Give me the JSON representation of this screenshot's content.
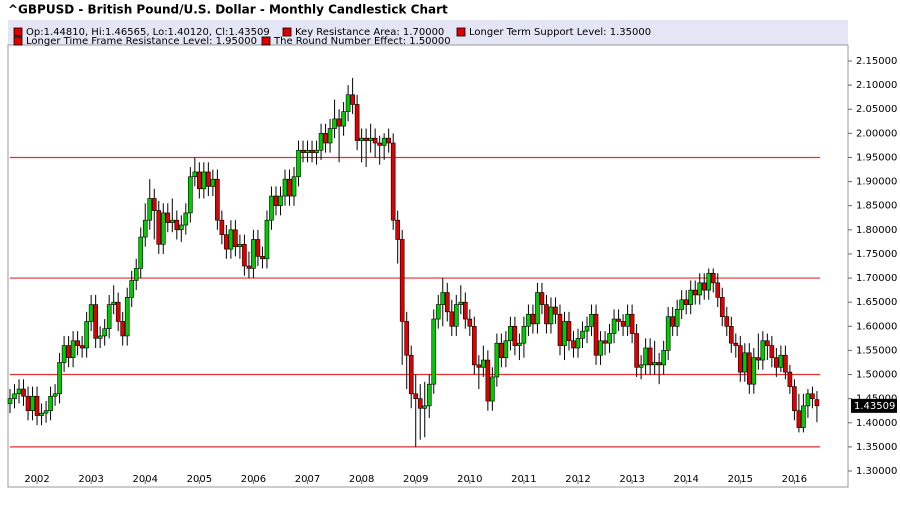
{
  "chart_data": {
    "type": "candlestick",
    "title": "^GBPUSD - British Pound/U.S. Dollar - Monthly Candlestick Chart",
    "ohlc_label": "Op:1.44810, Hi:1.46565, Lo:1.40120, Cl:1.43509",
    "last_price_label": "1.43509",
    "up_color": "#00cc00",
    "down_color": "#e00000",
    "level_color": "#e03030",
    "levels": [
      {
        "label": "Key Resistance Area: 1.70000",
        "value": 1.7
      },
      {
        "label": "Longer Term Support Level: 1.35000",
        "value": 1.35
      },
      {
        "label": "Longer Time Frame Resistance Level: 1.95000",
        "value": 1.95
      },
      {
        "label": "The Round Number Effect: 1.50000",
        "value": 1.5
      }
    ],
    "ylim": [
      1.3,
      2.15
    ],
    "yticks": [
      {
        "value": 1.3,
        "label": "1.30000"
      },
      {
        "value": 1.35,
        "label": "1.35000"
      },
      {
        "value": 1.4,
        "label": "1.40000"
      },
      {
        "value": 1.45,
        "label": "1.45000"
      },
      {
        "value": 1.5,
        "label": "1.50000"
      },
      {
        "value": 1.55,
        "label": "1.55000"
      },
      {
        "value": 1.6,
        "label": "1.60000"
      },
      {
        "value": 1.65,
        "label": "1.65000"
      },
      {
        "value": 1.7,
        "label": "1.70000"
      },
      {
        "value": 1.75,
        "label": "1.75000"
      },
      {
        "value": 1.8,
        "label": "1.80000"
      },
      {
        "value": 1.85,
        "label": "1.85000"
      },
      {
        "value": 1.9,
        "label": "1.90000"
      },
      {
        "value": 1.95,
        "label": "1.95000"
      },
      {
        "value": 2.0,
        "label": "2.00000"
      },
      {
        "value": 2.05,
        "label": "2.05000"
      },
      {
        "value": 2.1,
        "label": "2.10000"
      },
      {
        "value": 2.15,
        "label": "2.15000"
      }
    ],
    "categories": [
      null,
      null,
      null,
      null,
      null,
      null,
      "2002",
      null,
      null,
      null,
      null,
      null,
      null,
      null,
      null,
      null,
      null,
      null,
      "2003",
      null,
      null,
      null,
      null,
      null,
      null,
      null,
      null,
      null,
      null,
      null,
      "2004",
      null,
      null,
      null,
      null,
      null,
      null,
      null,
      null,
      null,
      null,
      null,
      "2005",
      null,
      null,
      null,
      null,
      null,
      null,
      null,
      null,
      null,
      null,
      null,
      "2006",
      null,
      null,
      null,
      null,
      null,
      null,
      null,
      null,
      null,
      null,
      null,
      "2007",
      null,
      null,
      null,
      null,
      null,
      null,
      null,
      null,
      null,
      null,
      null,
      "2008",
      null,
      null,
      null,
      null,
      null,
      null,
      null,
      null,
      null,
      null,
      null,
      "2009",
      null,
      null,
      null,
      null,
      null,
      null,
      null,
      null,
      null,
      null,
      null,
      "2010",
      null,
      null,
      null,
      null,
      null,
      null,
      null,
      null,
      null,
      null,
      null,
      "2011",
      null,
      null,
      null,
      null,
      null,
      null,
      null,
      null,
      null,
      null,
      null,
      "2012",
      null,
      null,
      null,
      null,
      null,
      null,
      null,
      null,
      null,
      null,
      null,
      "2013",
      null,
      null,
      null,
      null,
      null,
      null,
      null,
      null,
      null,
      null,
      null,
      "2014",
      null,
      null,
      null,
      null,
      null,
      null,
      null,
      null,
      null,
      null,
      null,
      "2015",
      null,
      null,
      null,
      null,
      null,
      null,
      null,
      null,
      null,
      null,
      null,
      "2016",
      null,
      null,
      null,
      null,
      null
    ],
    "candles": [
      [
        1.44,
        1.47,
        1.42,
        1.45
      ],
      [
        1.45,
        1.48,
        1.43,
        1.46
      ],
      [
        1.46,
        1.49,
        1.44,
        1.47
      ],
      [
        1.47,
        1.49,
        1.435,
        1.455
      ],
      [
        1.455,
        1.475,
        1.405,
        1.425
      ],
      [
        1.425,
        1.475,
        1.405,
        1.455
      ],
      [
        1.455,
        1.475,
        1.395,
        1.415
      ],
      [
        1.415,
        1.44,
        1.395,
        1.42
      ],
      [
        1.42,
        1.445,
        1.4,
        1.425
      ],
      [
        1.425,
        1.475,
        1.405,
        1.455
      ],
      [
        1.455,
        1.48,
        1.435,
        1.46
      ],
      [
        1.46,
        1.545,
        1.44,
        1.525
      ],
      [
        1.525,
        1.58,
        1.505,
        1.56
      ],
      [
        1.56,
        1.58,
        1.515,
        1.535
      ],
      [
        1.535,
        1.59,
        1.515,
        1.57
      ],
      [
        1.57,
        1.59,
        1.54,
        1.56
      ],
      [
        1.56,
        1.58,
        1.535,
        1.555
      ],
      [
        1.555,
        1.63,
        1.535,
        1.61
      ],
      [
        1.61,
        1.665,
        1.59,
        1.645
      ],
      [
        1.645,
        1.665,
        1.555,
        1.575
      ],
      [
        1.575,
        1.6,
        1.555,
        1.58
      ],
      [
        1.58,
        1.615,
        1.56,
        1.595
      ],
      [
        1.595,
        1.665,
        1.575,
        1.645
      ],
      [
        1.645,
        1.685,
        1.625,
        1.65
      ],
      [
        1.65,
        1.67,
        1.59,
        1.61
      ],
      [
        1.61,
        1.63,
        1.56,
        1.58
      ],
      [
        1.58,
        1.68,
        1.56,
        1.66
      ],
      [
        1.66,
        1.715,
        1.64,
        1.695
      ],
      [
        1.695,
        1.74,
        1.675,
        1.72
      ],
      [
        1.72,
        1.805,
        1.7,
        1.785
      ],
      [
        1.785,
        1.855,
        1.765,
        1.82
      ],
      [
        1.82,
        1.905,
        1.8,
        1.865
      ],
      [
        1.865,
        1.885,
        1.78,
        1.84
      ],
      [
        1.84,
        1.86,
        1.75,
        1.77
      ],
      [
        1.77,
        1.855,
        1.75,
        1.835
      ],
      [
        1.835,
        1.855,
        1.795,
        1.815
      ],
      [
        1.815,
        1.865,
        1.795,
        1.82
      ],
      [
        1.82,
        1.84,
        1.78,
        1.8
      ],
      [
        1.8,
        1.83,
        1.775,
        1.81
      ],
      [
        1.81,
        1.855,
        1.79,
        1.835
      ],
      [
        1.835,
        1.93,
        1.815,
        1.91
      ],
      [
        1.91,
        1.95,
        1.89,
        1.92
      ],
      [
        1.92,
        1.94,
        1.865,
        1.885
      ],
      [
        1.885,
        1.94,
        1.865,
        1.92
      ],
      [
        1.92,
        1.94,
        1.87,
        1.89
      ],
      [
        1.89,
        1.925,
        1.87,
        1.905
      ],
      [
        1.905,
        1.925,
        1.8,
        1.82
      ],
      [
        1.82,
        1.84,
        1.77,
        1.79
      ],
      [
        1.79,
        1.81,
        1.74,
        1.76
      ],
      [
        1.76,
        1.82,
        1.74,
        1.8
      ],
      [
        1.8,
        1.82,
        1.745,
        1.765
      ],
      [
        1.765,
        1.79,
        1.74,
        1.77
      ],
      [
        1.77,
        1.79,
        1.705,
        1.725
      ],
      [
        1.725,
        1.755,
        1.7,
        1.72
      ],
      [
        1.72,
        1.8,
        1.7,
        1.78
      ],
      [
        1.78,
        1.8,
        1.725,
        1.745
      ],
      [
        1.745,
        1.765,
        1.72,
        1.74
      ],
      [
        1.74,
        1.84,
        1.72,
        1.82
      ],
      [
        1.82,
        1.89,
        1.8,
        1.87
      ],
      [
        1.87,
        1.89,
        1.83,
        1.85
      ],
      [
        1.85,
        1.89,
        1.83,
        1.87
      ],
      [
        1.87,
        1.925,
        1.85,
        1.905
      ],
      [
        1.905,
        1.925,
        1.85,
        1.87
      ],
      [
        1.87,
        1.93,
        1.85,
        1.91
      ],
      [
        1.91,
        1.985,
        1.89,
        1.965
      ],
      [
        1.965,
        1.985,
        1.94,
        1.96
      ],
      [
        1.96,
        1.985,
        1.94,
        1.965
      ],
      [
        1.965,
        1.985,
        1.94,
        1.96
      ],
      [
        1.96,
        1.985,
        1.935,
        1.965
      ],
      [
        1.965,
        2.02,
        1.945,
        2.0
      ],
      [
        2.0,
        2.02,
        1.96,
        1.98
      ],
      [
        1.98,
        2.03,
        1.96,
        2.01
      ],
      [
        2.01,
        2.07,
        1.99,
        2.03
      ],
      [
        2.03,
        2.05,
        1.94,
        2.015
      ],
      [
        2.015,
        2.065,
        1.995,
        2.045
      ],
      [
        2.045,
        2.1,
        2.025,
        2.08
      ],
      [
        2.08,
        2.115,
        2.04,
        2.06
      ],
      [
        2.06,
        2.08,
        1.965,
        1.985
      ],
      [
        1.985,
        2.01,
        1.94,
        1.99
      ],
      [
        1.99,
        2.01,
        1.93,
        1.985
      ],
      [
        1.985,
        2.02,
        1.96,
        1.99
      ],
      [
        1.99,
        2.01,
        1.95,
        1.98
      ],
      [
        1.98,
        1.995,
        1.935,
        1.975
      ],
      [
        1.975,
        2.0,
        1.945,
        1.99
      ],
      [
        1.99,
        2.01,
        1.96,
        1.98
      ],
      [
        1.98,
        2.0,
        1.8,
        1.82
      ],
      [
        1.82,
        1.84,
        1.73,
        1.78
      ],
      [
        1.78,
        1.8,
        1.52,
        1.61
      ],
      [
        1.61,
        1.63,
        1.47,
        1.54
      ],
      [
        1.54,
        1.56,
        1.43,
        1.46
      ],
      [
        1.46,
        1.5,
        1.35,
        1.45
      ],
      [
        1.45,
        1.48,
        1.365,
        1.43
      ],
      [
        1.43,
        1.485,
        1.37,
        1.435
      ],
      [
        1.435,
        1.5,
        1.41,
        1.48
      ],
      [
        1.48,
        1.635,
        1.46,
        1.615
      ],
      [
        1.615,
        1.665,
        1.595,
        1.645
      ],
      [
        1.645,
        1.7,
        1.6,
        1.67
      ],
      [
        1.67,
        1.69,
        1.61,
        1.63
      ],
      [
        1.63,
        1.655,
        1.58,
        1.6
      ],
      [
        1.6,
        1.665,
        1.58,
        1.645
      ],
      [
        1.645,
        1.685,
        1.625,
        1.65
      ],
      [
        1.65,
        1.67,
        1.595,
        1.615
      ],
      [
        1.615,
        1.635,
        1.58,
        1.6
      ],
      [
        1.6,
        1.62,
        1.5,
        1.52
      ],
      [
        1.52,
        1.54,
        1.47,
        1.515
      ],
      [
        1.515,
        1.56,
        1.495,
        1.53
      ],
      [
        1.53,
        1.55,
        1.425,
        1.445
      ],
      [
        1.445,
        1.515,
        1.425,
        1.495
      ],
      [
        1.495,
        1.585,
        1.475,
        1.565
      ],
      [
        1.565,
        1.585,
        1.515,
        1.535
      ],
      [
        1.535,
        1.59,
        1.515,
        1.57
      ],
      [
        1.57,
        1.62,
        1.55,
        1.6
      ],
      [
        1.6,
        1.62,
        1.54,
        1.56
      ],
      [
        1.56,
        1.585,
        1.53,
        1.565
      ],
      [
        1.565,
        1.62,
        1.535,
        1.6
      ],
      [
        1.6,
        1.645,
        1.58,
        1.625
      ],
      [
        1.625,
        1.645,
        1.585,
        1.605
      ],
      [
        1.605,
        1.69,
        1.585,
        1.67
      ],
      [
        1.67,
        1.69,
        1.625,
        1.645
      ],
      [
        1.645,
        1.665,
        1.585,
        1.605
      ],
      [
        1.605,
        1.66,
        1.585,
        1.64
      ],
      [
        1.64,
        1.66,
        1.605,
        1.625
      ],
      [
        1.625,
        1.645,
        1.54,
        1.56
      ],
      [
        1.56,
        1.63,
        1.53,
        1.61
      ],
      [
        1.61,
        1.63,
        1.55,
        1.57
      ],
      [
        1.57,
        1.59,
        1.535,
        1.555
      ],
      [
        1.555,
        1.595,
        1.535,
        1.575
      ],
      [
        1.575,
        1.61,
        1.555,
        1.59
      ],
      [
        1.59,
        1.62,
        1.565,
        1.6
      ],
      [
        1.6,
        1.645,
        1.58,
        1.625
      ],
      [
        1.625,
        1.645,
        1.52,
        1.54
      ],
      [
        1.54,
        1.59,
        1.52,
        1.57
      ],
      [
        1.57,
        1.59,
        1.54,
        1.565
      ],
      [
        1.565,
        1.605,
        1.545,
        1.585
      ],
      [
        1.585,
        1.635,
        1.565,
        1.615
      ],
      [
        1.615,
        1.635,
        1.59,
        1.61
      ],
      [
        1.61,
        1.625,
        1.58,
        1.6
      ],
      [
        1.6,
        1.645,
        1.58,
        1.625
      ],
      [
        1.625,
        1.645,
        1.565,
        1.585
      ],
      [
        1.585,
        1.605,
        1.495,
        1.515
      ],
      [
        1.515,
        1.54,
        1.49,
        1.52
      ],
      [
        1.52,
        1.575,
        1.5,
        1.555
      ],
      [
        1.555,
        1.575,
        1.5,
        1.52
      ],
      [
        1.52,
        1.57,
        1.5,
        1.525
      ],
      [
        1.525,
        1.545,
        1.48,
        1.52
      ],
      [
        1.52,
        1.57,
        1.5,
        1.55
      ],
      [
        1.55,
        1.64,
        1.53,
        1.62
      ],
      [
        1.62,
        1.64,
        1.58,
        1.6
      ],
      [
        1.6,
        1.655,
        1.58,
        1.635
      ],
      [
        1.635,
        1.675,
        1.615,
        1.655
      ],
      [
        1.655,
        1.675,
        1.625,
        1.645
      ],
      [
        1.645,
        1.695,
        1.625,
        1.675
      ],
      [
        1.675,
        1.695,
        1.645,
        1.665
      ],
      [
        1.665,
        1.71,
        1.645,
        1.69
      ],
      [
        1.69,
        1.71,
        1.655,
        1.675
      ],
      [
        1.675,
        1.72,
        1.655,
        1.71
      ],
      [
        1.71,
        1.72,
        1.67,
        1.69
      ],
      [
        1.69,
        1.71,
        1.64,
        1.66
      ],
      [
        1.66,
        1.68,
        1.6,
        1.62
      ],
      [
        1.62,
        1.64,
        1.58,
        1.6
      ],
      [
        1.6,
        1.62,
        1.545,
        1.565
      ],
      [
        1.565,
        1.585,
        1.535,
        1.56
      ],
      [
        1.56,
        1.58,
        1.485,
        1.505
      ],
      [
        1.505,
        1.565,
        1.485,
        1.545
      ],
      [
        1.545,
        1.565,
        1.46,
        1.48
      ],
      [
        1.48,
        1.555,
        1.46,
        1.535
      ],
      [
        1.535,
        1.585,
        1.51,
        1.53
      ],
      [
        1.53,
        1.59,
        1.51,
        1.57
      ],
      [
        1.57,
        1.585,
        1.53,
        1.56
      ],
      [
        1.56,
        1.58,
        1.515,
        1.535
      ],
      [
        1.535,
        1.555,
        1.495,
        1.515
      ],
      [
        1.515,
        1.56,
        1.505,
        1.54
      ],
      [
        1.54,
        1.56,
        1.49,
        1.505
      ],
      [
        1.505,
        1.52,
        1.46,
        1.475
      ],
      [
        1.475,
        1.49,
        1.405,
        1.425
      ],
      [
        1.425,
        1.46,
        1.38,
        1.39
      ],
      [
        1.39,
        1.46,
        1.38,
        1.435
      ],
      [
        1.435,
        1.47,
        1.41,
        1.46
      ],
      [
        1.46,
        1.475,
        1.43,
        1.45
      ],
      [
        1.4481,
        1.46565,
        1.4012,
        1.43509
      ]
    ]
  }
}
